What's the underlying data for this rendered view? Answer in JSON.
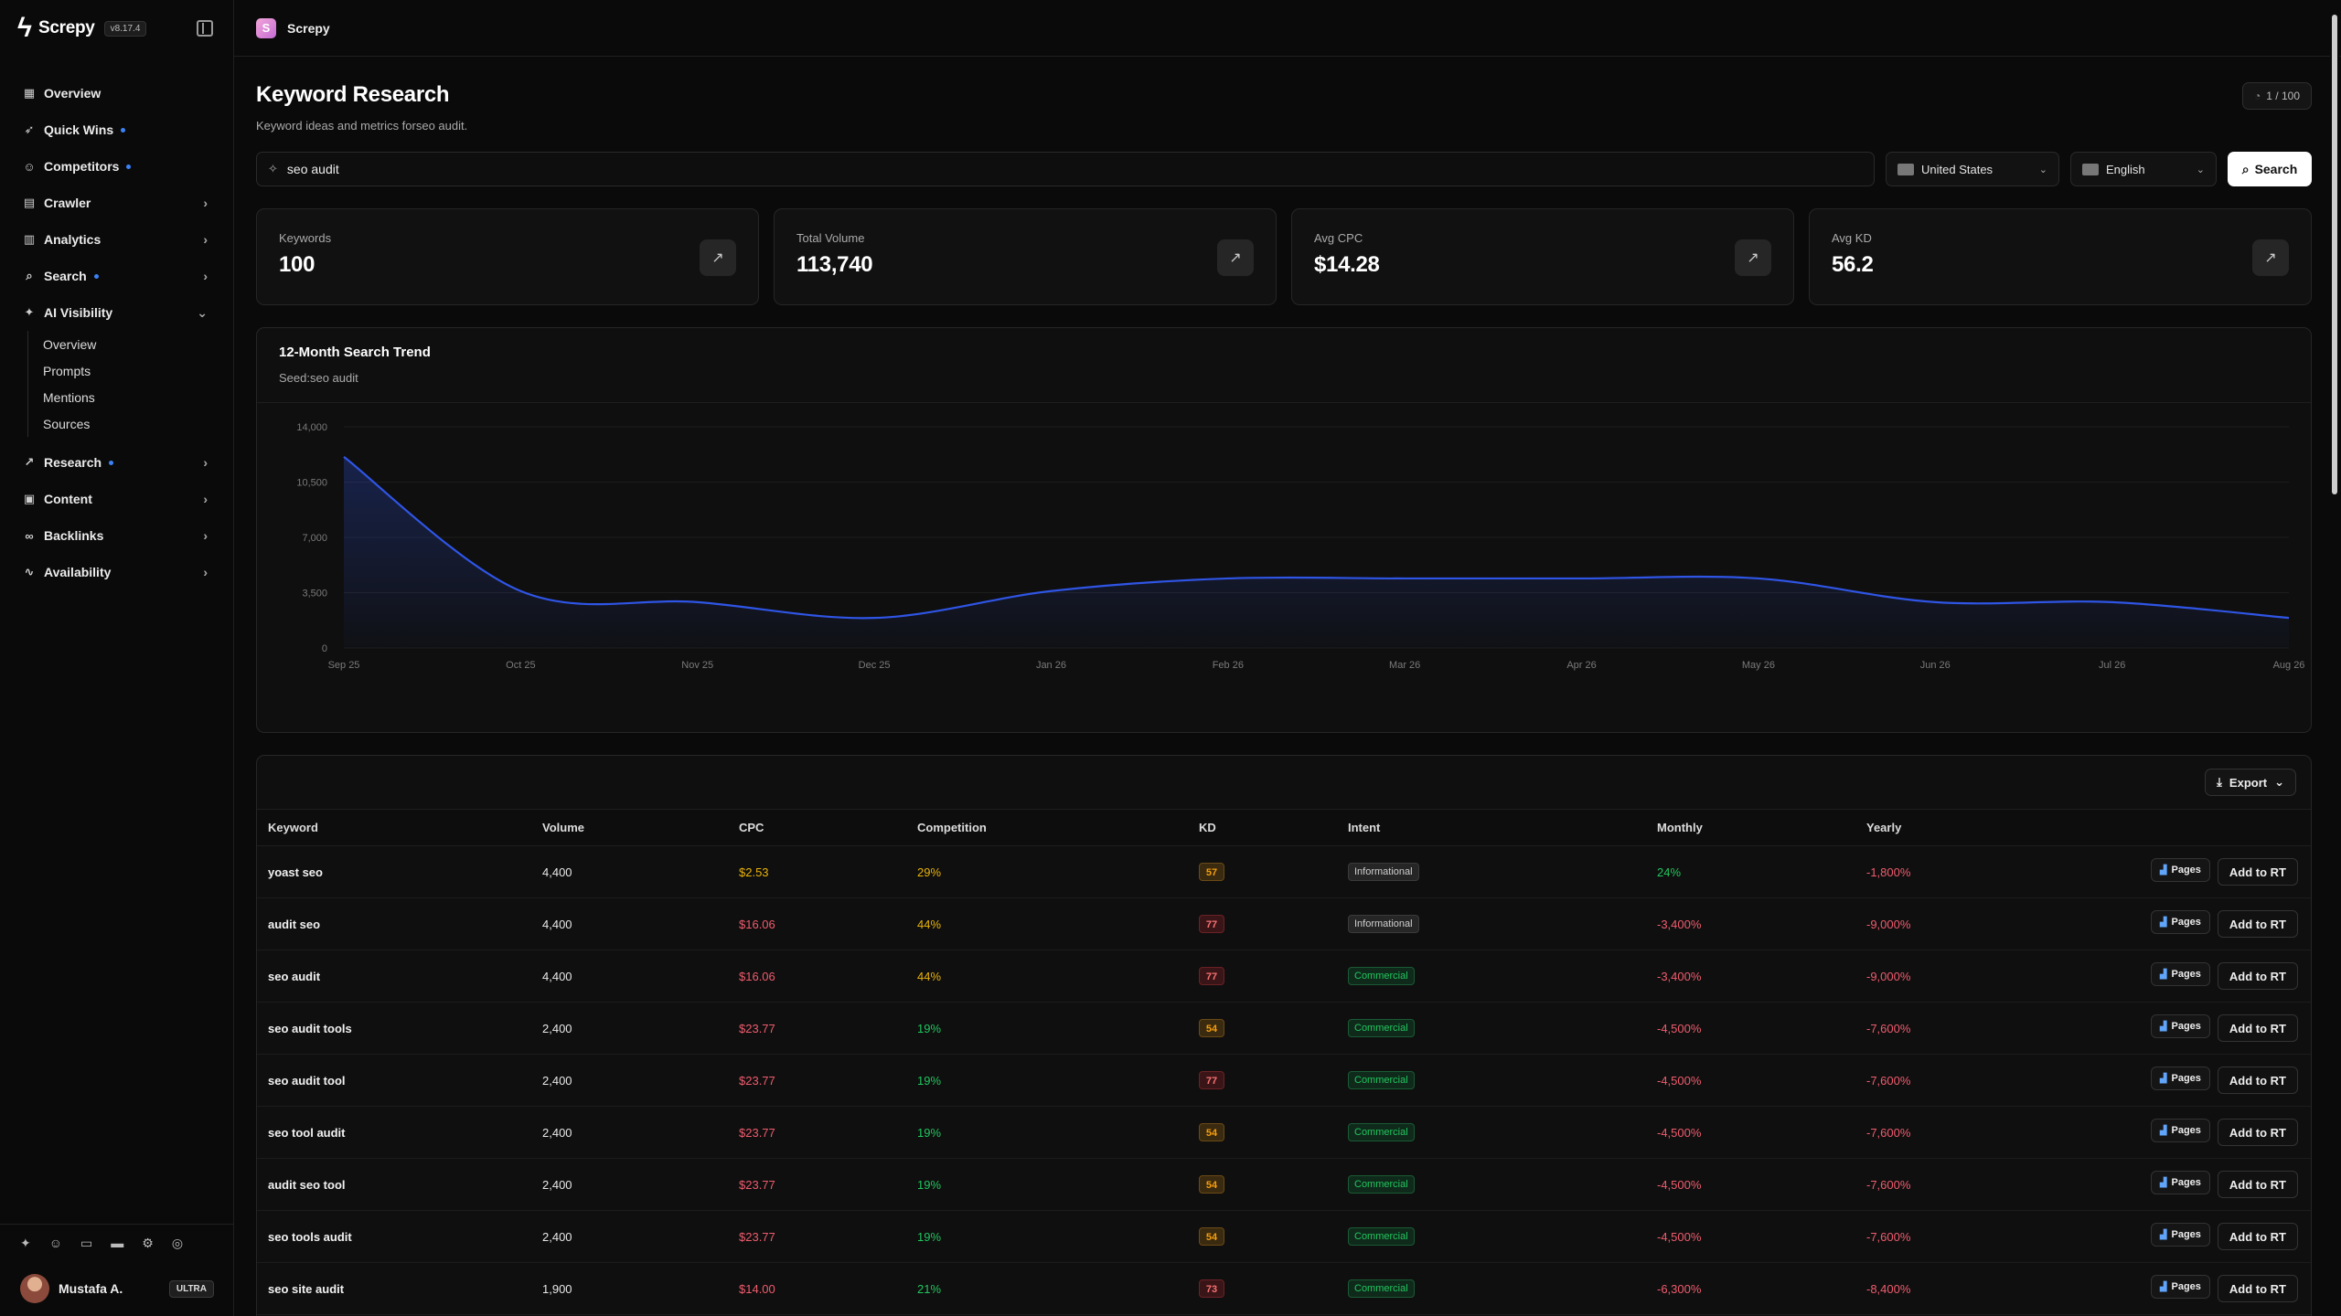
{
  "sidebar": {
    "brand": "Screpy",
    "version": "v8.17.4",
    "nav": [
      {
        "label": "Overview",
        "icon": "grid-icon"
      },
      {
        "label": "Quick Wins",
        "icon": "rocket-icon",
        "dot": true
      },
      {
        "label": "Competitors",
        "icon": "users-icon",
        "dot": true
      },
      {
        "label": "Crawler",
        "icon": "file-icon",
        "chevron": "›"
      },
      {
        "label": "Analytics",
        "icon": "bar-chart-icon",
        "chevron": "›"
      },
      {
        "label": "Search",
        "icon": "search-icon",
        "dot": true,
        "chevron": "›"
      },
      {
        "label": "AI Visibility",
        "icon": "sparkle-icon",
        "chevron": "⌄"
      }
    ],
    "ai_sub": [
      "Overview",
      "Prompts",
      "Mentions",
      "Sources"
    ],
    "nav2": [
      {
        "label": "Research",
        "icon": "trend-icon",
        "dot": true,
        "chevron": "›"
      },
      {
        "label": "Content",
        "icon": "content-icon",
        "chevron": "›"
      },
      {
        "label": "Backlinks",
        "icon": "link-icon",
        "chevron": "›"
      },
      {
        "label": "Availability",
        "icon": "pulse-icon",
        "chevron": "›"
      }
    ],
    "user": {
      "name": "Mustafa A.",
      "plan": "ULTRA"
    }
  },
  "topbar": {
    "title": "Screpy",
    "logo": "S"
  },
  "page": {
    "title": "Keyword Research",
    "subtitle": "Keyword ideas and metrics forseo audit.",
    "quota": "1 / 100"
  },
  "search": {
    "value": "seo audit",
    "country": "United States",
    "language": "English",
    "button": "Search"
  },
  "stats": [
    {
      "label": "Keywords",
      "value": "100"
    },
    {
      "label": "Total Volume",
      "value": "113,740"
    },
    {
      "label": "Avg CPC",
      "value": "$14.28"
    },
    {
      "label": "Avg KD",
      "value": "56.2"
    }
  ],
  "trend": {
    "title": "12-Month Search Trend",
    "subtitle": "Seed:seo audit"
  },
  "chart_data": {
    "type": "area",
    "title": "12-Month Search Trend",
    "subtitle": "Seed:seo audit",
    "x": [
      "Sep 25",
      "Oct 25",
      "Nov 25",
      "Dec 25",
      "Jan 26",
      "Feb 26",
      "Mar 26",
      "Apr 26",
      "May 26",
      "Jun 26",
      "Jul 26",
      "Aug 26"
    ],
    "series": [
      {
        "values": [
          12100,
          3600,
          2900,
          1900,
          3600,
          4400,
          4400,
          4400,
          4400,
          2900,
          2900,
          1900
        ]
      }
    ],
    "yticks": [
      0,
      3500,
      7000,
      10500,
      14000
    ],
    "yticks_labels": [
      "0",
      "3,500",
      "7,000",
      "10,500",
      "14,000"
    ],
    "ylim": [
      0,
      14000
    ],
    "grid": true,
    "color": "#2f55e6"
  },
  "table": {
    "export_label": "Export",
    "columns": [
      "Keyword",
      "Volume",
      "CPC",
      "Competition",
      "KD",
      "Intent",
      "Monthly",
      "Yearly"
    ],
    "pages_label": "Pages",
    "rt_label": "Add to RT",
    "rows": [
      {
        "keyword": "yoast seo",
        "volume": "4,400",
        "cpc": "$2.53",
        "competition": "29%",
        "kd": "57",
        "intent": "Informational",
        "monthly": "24%",
        "yearly": "-1,800%"
      },
      {
        "keyword": "audit seo",
        "volume": "4,400",
        "cpc": "$16.06",
        "competition": "44%",
        "kd": "77",
        "intent": "Informational",
        "monthly": "-3,400%",
        "yearly": "-9,000%"
      },
      {
        "keyword": "seo audit",
        "volume": "4,400",
        "cpc": "$16.06",
        "competition": "44%",
        "kd": "77",
        "intent": "Commercial",
        "monthly": "-3,400%",
        "yearly": "-9,000%"
      },
      {
        "keyword": "seo audit tools",
        "volume": "2,400",
        "cpc": "$23.77",
        "competition": "19%",
        "kd": "54",
        "intent": "Commercial",
        "monthly": "-4,500%",
        "yearly": "-7,600%"
      },
      {
        "keyword": "seo audit tool",
        "volume": "2,400",
        "cpc": "$23.77",
        "competition": "19%",
        "kd": "77",
        "intent": "Commercial",
        "monthly": "-4,500%",
        "yearly": "-7,600%"
      },
      {
        "keyword": "seo tool audit",
        "volume": "2,400",
        "cpc": "$23.77",
        "competition": "19%",
        "kd": "54",
        "intent": "Commercial",
        "monthly": "-4,500%",
        "yearly": "-7,600%"
      },
      {
        "keyword": "audit seo tool",
        "volume": "2,400",
        "cpc": "$23.77",
        "competition": "19%",
        "kd": "54",
        "intent": "Commercial",
        "monthly": "-4,500%",
        "yearly": "-7,600%"
      },
      {
        "keyword": "seo tools audit",
        "volume": "2,400",
        "cpc": "$23.77",
        "competition": "19%",
        "kd": "54",
        "intent": "Commercial",
        "monthly": "-4,500%",
        "yearly": "-7,600%"
      },
      {
        "keyword": "seo site audit",
        "volume": "1,900",
        "cpc": "$14.00",
        "competition": "21%",
        "kd": "73",
        "intent": "Commercial",
        "monthly": "-6,300%",
        "yearly": "-8,400%"
      }
    ]
  }
}
